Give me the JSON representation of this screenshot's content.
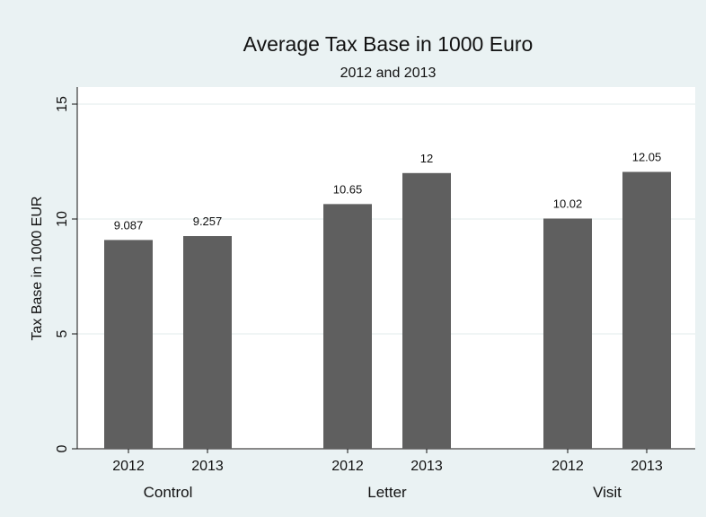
{
  "chart_data": {
    "type": "bar",
    "title": "Average Tax Base in 1000 Euro",
    "subtitle": "2012 and 2013",
    "ylabel": "Tax Base in 1000 EUR",
    "ylim": [
      0,
      15
    ],
    "yticks": [
      0,
      5,
      10,
      15
    ],
    "grid": true,
    "bar_color": "#5f5f5f",
    "background_color": "#eaf2f3",
    "plot_background_color": "#ffffff",
    "groups": [
      {
        "label": "Control",
        "bars": [
          {
            "category": "2012",
            "value": 9.087,
            "value_label": "9.087"
          },
          {
            "category": "2013",
            "value": 9.257,
            "value_label": "9.257"
          }
        ]
      },
      {
        "label": "Letter",
        "bars": [
          {
            "category": "2012",
            "value": 10.65,
            "value_label": "10.65"
          },
          {
            "category": "2013",
            "value": 12,
            "value_label": "12"
          }
        ]
      },
      {
        "label": "Visit",
        "bars": [
          {
            "category": "2012",
            "value": 10.02,
            "value_label": "10.02"
          },
          {
            "category": "2013",
            "value": 12.05,
            "value_label": "12.05"
          }
        ]
      }
    ]
  }
}
